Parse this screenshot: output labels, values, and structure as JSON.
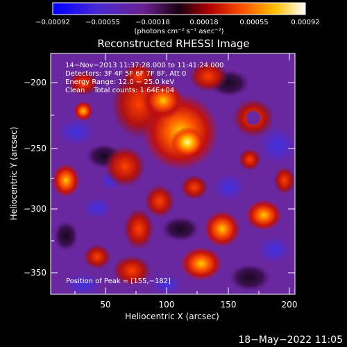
{
  "plot": {
    "title": "Reconstructed RHESSI Image",
    "xlabel": "Heliocentric X (arcsec)",
    "ylabel": "Heliocentric Y (arcsec)",
    "xticks": [
      {
        "value": 50,
        "label": "50"
      },
      {
        "value": 100,
        "label": "100"
      },
      {
        "value": 150,
        "label": "150"
      },
      {
        "value": 200,
        "label": "200"
      }
    ],
    "yticks": [
      {
        "value": -200,
        "label": "−200"
      },
      {
        "value": -250,
        "label": "−250"
      },
      {
        "value": -300,
        "label": "−300"
      },
      {
        "value": -350,
        "label": "−350"
      }
    ],
    "xlim": [
      7,
      200
    ],
    "ylim": [
      -367,
      -168
    ]
  },
  "colorbar": {
    "ticks": [
      {
        "value": -0.00092,
        "label": "−0.00092"
      },
      {
        "value": -0.00055,
        "label": "−0.00055"
      },
      {
        "value": -0.00018,
        "label": "−0.00018"
      },
      {
        "value": 0.00018,
        "label": "0.00018"
      },
      {
        "value": 0.00055,
        "label": "0.00055"
      },
      {
        "value": 0.00092,
        "label": "0.00092"
      }
    ],
    "unit_label": "(photons cm⁻² s⁻¹ asec⁻²)",
    "range": [
      -0.00092,
      0.00092
    ],
    "colors": [
      "#0000ff",
      "#7a1fa8",
      "#2a0a20",
      "#d01010",
      "#ff6a00",
      "#ffd200",
      "#ffffff"
    ]
  },
  "info": {
    "line1": "14−Nov−2013 11:37:28.000 to 11:41:24.000",
    "line2": "Detectors: 3F 4F 5F 6F 7F 8F, Att 0",
    "line3": "Energy Range: 12.0 − 25.0 keV",
    "line4": "Clean    Total counts: 1.64E+04",
    "peak": "Position of Peak = [155,−182]"
  },
  "footer": {
    "timestamp": "18−May−2022 11:05"
  }
}
